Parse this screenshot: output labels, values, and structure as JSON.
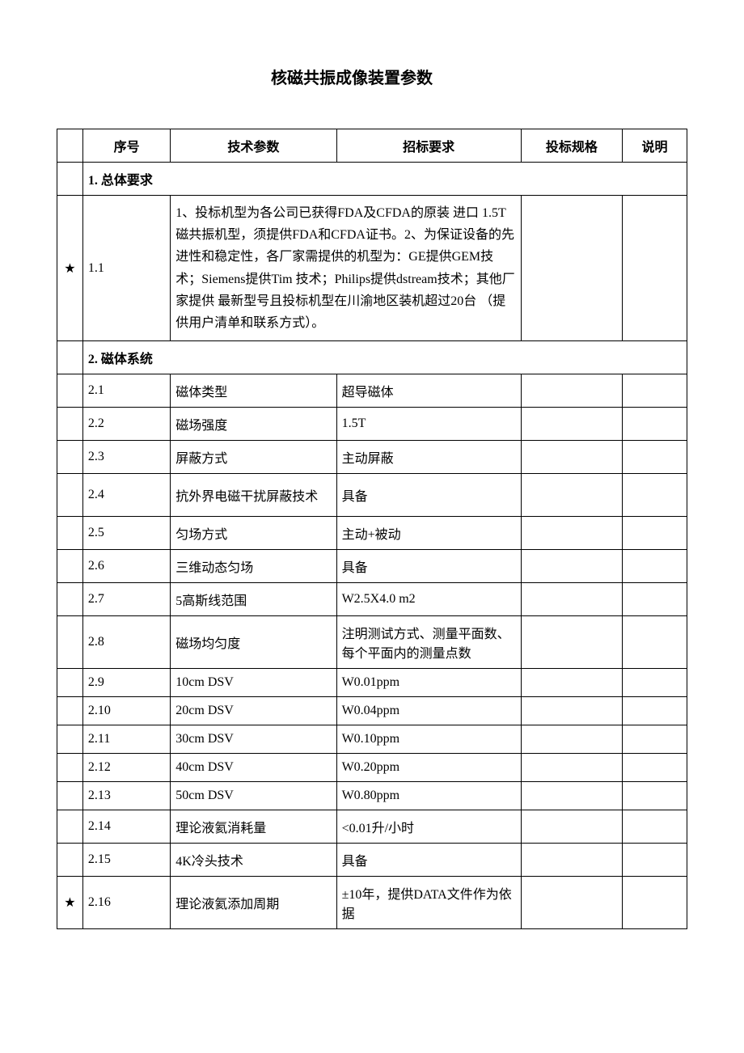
{
  "title": "核磁共振成像装置参数",
  "headers": {
    "star": "",
    "num": "序号",
    "param": "技术参数",
    "req": "招标要求",
    "spec": "投标规格",
    "desc": "说明"
  },
  "sections": [
    {
      "header": "1. 总体要求",
      "rows": [
        {
          "star": "★",
          "num": "1.1",
          "merged": "1、投标机型为各公司已获得FDA及CFDA的原装 进口 1.5T磁共振机型，须提供FDA和CFDA证书。2、为保证设备的先进性和稳定性，各厂家需提供的机型为：GE提供GEM技术；Siemens提供Tim 技术；Philips提供dstream技术；其他厂家提供 最新型号且投标机型在川渝地区装机超过20台 （提供用户清单和联系方式）。",
          "spec": "",
          "desc": ""
        }
      ]
    },
    {
      "header": "2. 磁体系统",
      "rows": [
        {
          "star": "",
          "num": "2.1",
          "param": "磁体类型",
          "req": "超导磁体",
          "spec": "",
          "desc": ""
        },
        {
          "star": "",
          "num": "2.2",
          "param": "磁场强度",
          "req": "1.5T",
          "spec": "",
          "desc": ""
        },
        {
          "star": "",
          "num": "2.3",
          "param": "屏蔽方式",
          "req": "主动屏蔽",
          "spec": "",
          "desc": ""
        },
        {
          "star": "",
          "num": "2.4",
          "param": "抗外界电磁干扰屏蔽技术",
          "req": "具备",
          "spec": "",
          "desc": "",
          "tall": true
        },
        {
          "star": "",
          "num": "2.5",
          "param": "匀场方式",
          "req": "主动+被动",
          "spec": "",
          "desc": ""
        },
        {
          "star": "",
          "num": "2.6",
          "param": "三维动态匀场",
          "req": "具备",
          "spec": "",
          "desc": ""
        },
        {
          "star": "",
          "num": "2.7",
          "param": "5高斯线范围",
          "req": "W2.5X4.0 m2",
          "spec": "",
          "desc": ""
        },
        {
          "star": "",
          "num": "2.8",
          "param": "磁场均匀度",
          "req": "注明测试方式、测量平面数、每个平面内的测量点数",
          "spec": "",
          "desc": ""
        },
        {
          "star": "",
          "num": "2.9",
          "param": "10cm DSV",
          "req": "W0.01ppm",
          "spec": "",
          "desc": ""
        },
        {
          "star": "",
          "num": "2.10",
          "param": "20cm DSV",
          "req": "W0.04ppm",
          "spec": "",
          "desc": ""
        },
        {
          "star": "",
          "num": "2.11",
          "param": "30cm DSV",
          "req": "W0.10ppm",
          "spec": "",
          "desc": ""
        },
        {
          "star": "",
          "num": "2.12",
          "param": "40cm DSV",
          "req": "W0.20ppm",
          "spec": "",
          "desc": ""
        },
        {
          "star": "",
          "num": "2.13",
          "param": "50cm DSV",
          "req": "W0.80ppm",
          "spec": "",
          "desc": ""
        },
        {
          "star": "",
          "num": "2.14",
          "param": "理论液氦消耗量",
          "req": "<0.01升/小时",
          "spec": "",
          "desc": ""
        },
        {
          "star": "",
          "num": "2.15",
          "param": "4K冷头技术",
          "req": "具备",
          "spec": "",
          "desc": ""
        },
        {
          "star": "★",
          "num": "2.16",
          "param": "理论液氦添加周期",
          "req": "±10年，提供DATA文件作为依据",
          "spec": "",
          "desc": ""
        }
      ]
    }
  ]
}
